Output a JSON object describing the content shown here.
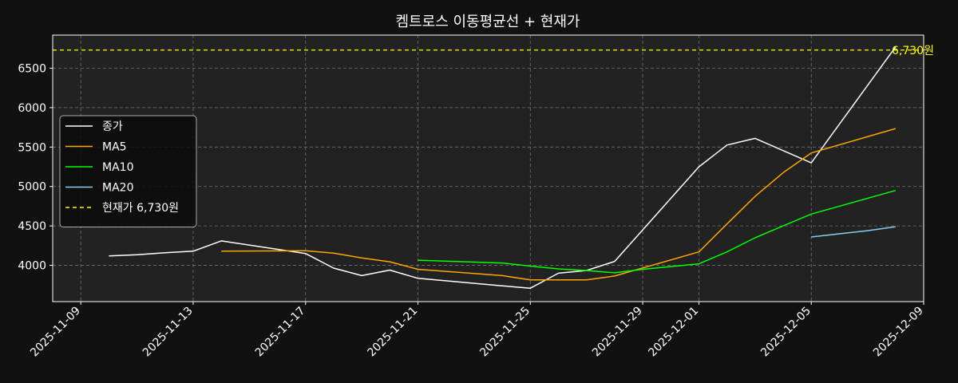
{
  "chart_data": {
    "type": "line",
    "title": "켐트로스 이동평균선 + 현재가",
    "xlabel": "",
    "ylabel": "",
    "grid": true,
    "legend_position": "upper-left",
    "xlim": [
      "2025-11-08",
      "2025-12-09"
    ],
    "ylim": [
      3540,
      6920
    ],
    "x_ticks": [
      "2025-11-09",
      "2025-11-13",
      "2025-11-17",
      "2025-11-21",
      "2025-11-25",
      "2025-11-29",
      "2025-12-01",
      "2025-12-05",
      "2025-12-09"
    ],
    "y_ticks": [
      4000,
      4500,
      5000,
      5500,
      6000,
      6500
    ],
    "series": [
      {
        "name": "종가",
        "color": "#ffffff",
        "style": "solid",
        "points": [
          [
            "2025-11-10",
            4120
          ],
          [
            "2025-11-11",
            4135
          ],
          [
            "2025-11-12",
            4160
          ],
          [
            "2025-11-13",
            4180
          ],
          [
            "2025-11-14",
            4310
          ],
          [
            "2025-11-17",
            4150
          ],
          [
            "2025-11-18",
            3965
          ],
          [
            "2025-11-19",
            3870
          ],
          [
            "2025-11-20",
            3940
          ],
          [
            "2025-11-21",
            3835
          ],
          [
            "2025-11-24",
            3740
          ],
          [
            "2025-11-25",
            3710
          ],
          [
            "2025-11-26",
            3900
          ],
          [
            "2025-11-27",
            3935
          ],
          [
            "2025-11-28",
            4050
          ],
          [
            "2025-12-01",
            5250
          ],
          [
            "2025-12-02",
            5525
          ],
          [
            "2025-12-03",
            5610
          ],
          [
            "2025-12-05",
            5300
          ],
          [
            "2025-12-08",
            6770
          ]
        ]
      },
      {
        "name": "MA5",
        "color": "#ffa500",
        "style": "solid",
        "points": [
          [
            "2025-11-14",
            4180
          ],
          [
            "2025-11-17",
            4185
          ],
          [
            "2025-11-18",
            4155
          ],
          [
            "2025-11-19",
            4095
          ],
          [
            "2025-11-20",
            4045
          ],
          [
            "2025-11-21",
            3950
          ],
          [
            "2025-11-24",
            3870
          ],
          [
            "2025-11-25",
            3815
          ],
          [
            "2025-11-26",
            3815
          ],
          [
            "2025-11-27",
            3815
          ],
          [
            "2025-11-28",
            3865
          ],
          [
            "2025-12-01",
            4170
          ],
          [
            "2025-12-02",
            4525
          ],
          [
            "2025-12-03",
            4875
          ],
          [
            "2025-12-04",
            5175
          ],
          [
            "2025-12-05",
            5425
          ],
          [
            "2025-12-08",
            5735
          ]
        ]
      },
      {
        "name": "MA10",
        "color": "#00ff00",
        "style": "solid",
        "points": [
          [
            "2025-11-21",
            4065
          ],
          [
            "2025-11-24",
            4030
          ],
          [
            "2025-11-25",
            3990
          ],
          [
            "2025-11-26",
            3955
          ],
          [
            "2025-11-27",
            3935
          ],
          [
            "2025-11-28",
            3905
          ],
          [
            "2025-11-29",
            3950
          ],
          [
            "2025-12-01",
            4020
          ],
          [
            "2025-12-02",
            4170
          ],
          [
            "2025-12-03",
            4350
          ],
          [
            "2025-12-04",
            4500
          ],
          [
            "2025-12-05",
            4650
          ],
          [
            "2025-12-08",
            4950
          ]
        ]
      },
      {
        "name": "MA20",
        "color": "#87ceeb",
        "style": "solid",
        "points": [
          [
            "2025-12-05",
            4360
          ],
          [
            "2025-12-06",
            4400
          ],
          [
            "2025-12-07",
            4440
          ],
          [
            "2025-12-08",
            4490
          ]
        ]
      }
    ],
    "reference_line": {
      "name": "현재가 6,730원",
      "label": "6,730원",
      "value": 6730,
      "color": "#ffff00",
      "style": "dashed"
    }
  }
}
